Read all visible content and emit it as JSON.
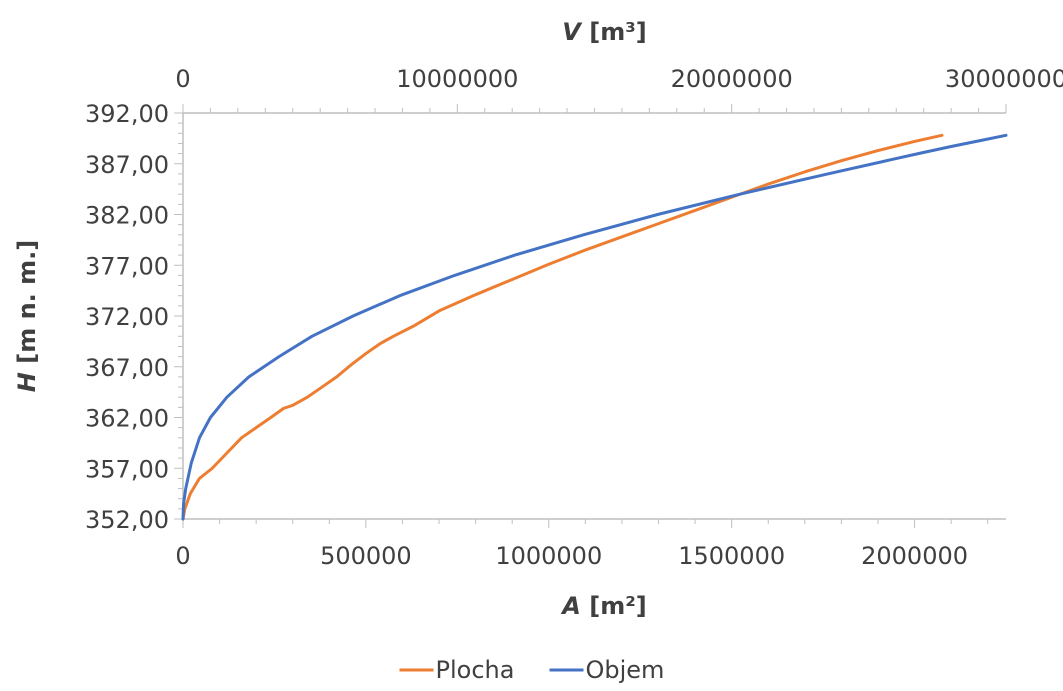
{
  "chart_data": {
    "type": "line",
    "y_axis": {
      "label_var": "H",
      "label_unit": "[m n. m.]",
      "range": [
        352,
        392
      ],
      "ticks": [
        {
          "value": 352,
          "label": "352,00"
        },
        {
          "value": 357,
          "label": "357,00"
        },
        {
          "value": 362,
          "label": "362,00"
        },
        {
          "value": 367,
          "label": "367,00"
        },
        {
          "value": 372,
          "label": "372,00"
        },
        {
          "value": 377,
          "label": "377,00"
        },
        {
          "value": 382,
          "label": "382,00"
        },
        {
          "value": 387,
          "label": "387,00"
        },
        {
          "value": 392,
          "label": "392,00"
        }
      ]
    },
    "x_axis_bottom": {
      "label_var": "A",
      "label_unit": "[m²]",
      "range": [
        0,
        2250000
      ],
      "ticks": [
        {
          "value": 0,
          "label": "0"
        },
        {
          "value": 500000,
          "label": "500000"
        },
        {
          "value": 1000000,
          "label": "1000000"
        },
        {
          "value": 1500000,
          "label": "1500000"
        },
        {
          "value": 2000000,
          "label": "2000000"
        }
      ]
    },
    "x_axis_top": {
      "label_var": "V",
      "label_unit": "[m³]",
      "range": [
        0,
        30000000
      ],
      "ticks": [
        {
          "value": 0,
          "label": "0"
        },
        {
          "value": 10000000,
          "label": "10000000"
        },
        {
          "value": 20000000,
          "label": "20000000"
        },
        {
          "value": 30000000,
          "label": "30000000"
        }
      ]
    },
    "grid": false,
    "legend_position": "bottom",
    "series": [
      {
        "name": "Plocha",
        "axis": "bottom",
        "color": "#ED7D31",
        "points": [
          [
            0,
            352
          ],
          [
            5000,
            353
          ],
          [
            20000,
            354.5
          ],
          [
            45000,
            356
          ],
          [
            80000,
            357
          ],
          [
            120000,
            358.5
          ],
          [
            160000,
            360
          ],
          [
            200000,
            361
          ],
          [
            240000,
            362
          ],
          [
            275000,
            362.9
          ],
          [
            300000,
            363.2
          ],
          [
            340000,
            364
          ],
          [
            380000,
            365
          ],
          [
            420000,
            366
          ],
          [
            460000,
            367.2
          ],
          [
            500000,
            368.3
          ],
          [
            540000,
            369.3
          ],
          [
            575000,
            370
          ],
          [
            630000,
            371
          ],
          [
            700000,
            372.5
          ],
          [
            800000,
            374.1
          ],
          [
            900000,
            375.6
          ],
          [
            1000000,
            377.1
          ],
          [
            1100000,
            378.5
          ],
          [
            1200000,
            379.8
          ],
          [
            1300000,
            381.1
          ],
          [
            1400000,
            382.4
          ],
          [
            1500000,
            383.7
          ],
          [
            1600000,
            385
          ],
          [
            1700000,
            386.2
          ],
          [
            1800000,
            387.3
          ],
          [
            1900000,
            388.3
          ],
          [
            2000000,
            389.2
          ],
          [
            2075000,
            389.8
          ]
        ]
      },
      {
        "name": "Objem",
        "axis": "top",
        "color": "#4472C4",
        "points": [
          [
            0,
            352
          ],
          [
            20000,
            353.5
          ],
          [
            100000,
            355
          ],
          [
            300000,
            357.5
          ],
          [
            600000,
            360
          ],
          [
            1000000,
            362
          ],
          [
            1600000,
            364
          ],
          [
            2400000,
            366
          ],
          [
            3500000,
            368
          ],
          [
            4700000,
            370
          ],
          [
            6200000,
            372
          ],
          [
            7900000,
            374
          ],
          [
            9900000,
            376
          ],
          [
            12100000,
            378
          ],
          [
            14600000,
            380
          ],
          [
            17300000,
            382
          ],
          [
            20300000,
            384
          ],
          [
            23500000,
            386
          ],
          [
            26800000,
            388
          ],
          [
            28000000,
            388.7
          ],
          [
            29100000,
            389.3
          ],
          [
            30000000,
            389.8
          ]
        ]
      }
    ]
  }
}
